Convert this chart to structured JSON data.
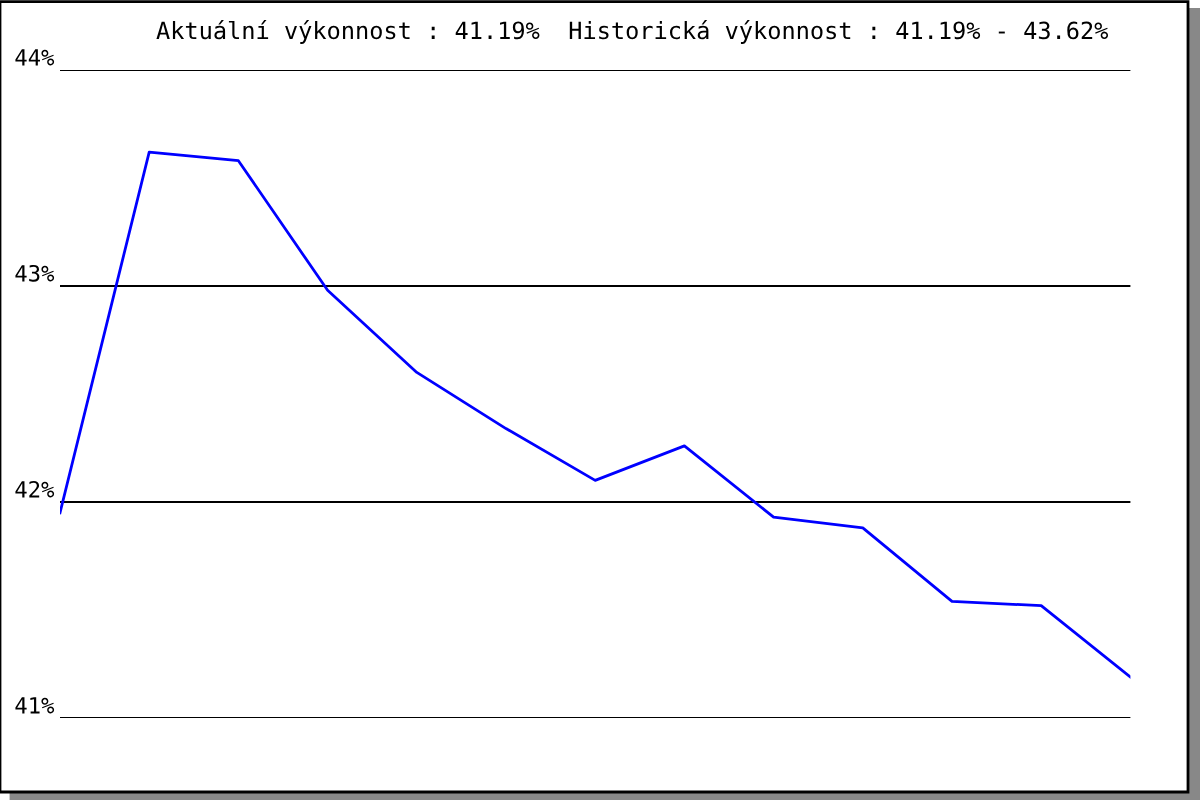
{
  "chart_data": {
    "type": "line",
    "title": "Aktuální výkonnost : 41.19%  Historická výkonnost : 41.19% - 43.62%",
    "categories": [
      null,
      null,
      null,
      null,
      null,
      null,
      null,
      null,
      null,
      null,
      null,
      null,
      null
    ],
    "series": [
      {
        "color": "#0000ff",
        "values": [
          41.95,
          43.62,
          43.58,
          42.98,
          42.6,
          42.34,
          42.1,
          42.26,
          41.93,
          41.88,
          41.54,
          41.52,
          41.19
        ]
      }
    ],
    "ylim": [
      41,
      44
    ],
    "yticks": [
      {
        "value": 41,
        "label": "41%"
      },
      {
        "value": 42,
        "label": "42%"
      },
      {
        "value": 43,
        "label": "43%"
      },
      {
        "value": 44,
        "label": "44%"
      }
    ],
    "grid": "y",
    "marker": "none",
    "line_style": "solid"
  }
}
